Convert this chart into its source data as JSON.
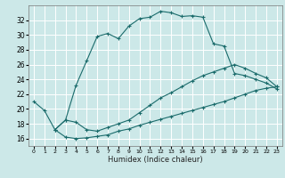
{
  "xlabel": "Humidex (Indice chaleur)",
  "bg_color": "#cce8e8",
  "grid_color": "#ffffff",
  "line_color": "#1a6b6b",
  "xlim": [
    -0.5,
    23.5
  ],
  "ylim": [
    15.0,
    34.0
  ],
  "yticks": [
    16,
    18,
    20,
    22,
    24,
    26,
    28,
    30,
    32
  ],
  "xticks": [
    0,
    1,
    2,
    3,
    4,
    5,
    6,
    7,
    8,
    9,
    10,
    11,
    12,
    13,
    14,
    15,
    16,
    17,
    18,
    19,
    20,
    21,
    22,
    23
  ],
  "line1_x": [
    0,
    1,
    2,
    3,
    4,
    5,
    6,
    7,
    8,
    9,
    10,
    11,
    12,
    13,
    14,
    15,
    16,
    17,
    18,
    19,
    20,
    21,
    22,
    23
  ],
  "line1_y": [
    21.0,
    19.8,
    17.2,
    18.5,
    23.2,
    26.5,
    29.8,
    30.2,
    29.5,
    31.2,
    32.2,
    32.4,
    33.2,
    33.0,
    32.5,
    32.6,
    32.4,
    28.8,
    28.5,
    24.8,
    24.5,
    24.0,
    23.5,
    22.7
  ],
  "line2_x": [
    2,
    3,
    4,
    5,
    6,
    7,
    8,
    9,
    10,
    11,
    12,
    13,
    14,
    15,
    16,
    17,
    18,
    19,
    20,
    21,
    22,
    23
  ],
  "line2_y": [
    17.2,
    18.5,
    18.2,
    17.2,
    17.0,
    17.5,
    18.0,
    18.5,
    19.5,
    20.5,
    21.5,
    22.2,
    23.0,
    23.8,
    24.5,
    25.0,
    25.5,
    26.0,
    25.5,
    24.8,
    24.2,
    23.0
  ],
  "line3_x": [
    2,
    3,
    4,
    5,
    6,
    7,
    8,
    9,
    10,
    11,
    12,
    13,
    14,
    15,
    16,
    17,
    18,
    19,
    20,
    21,
    22,
    23
  ],
  "line3_y": [
    17.2,
    16.2,
    16.0,
    16.1,
    16.3,
    16.5,
    17.0,
    17.3,
    17.8,
    18.2,
    18.6,
    19.0,
    19.4,
    19.8,
    20.2,
    20.6,
    21.0,
    21.5,
    22.0,
    22.5,
    22.8,
    23.0
  ]
}
